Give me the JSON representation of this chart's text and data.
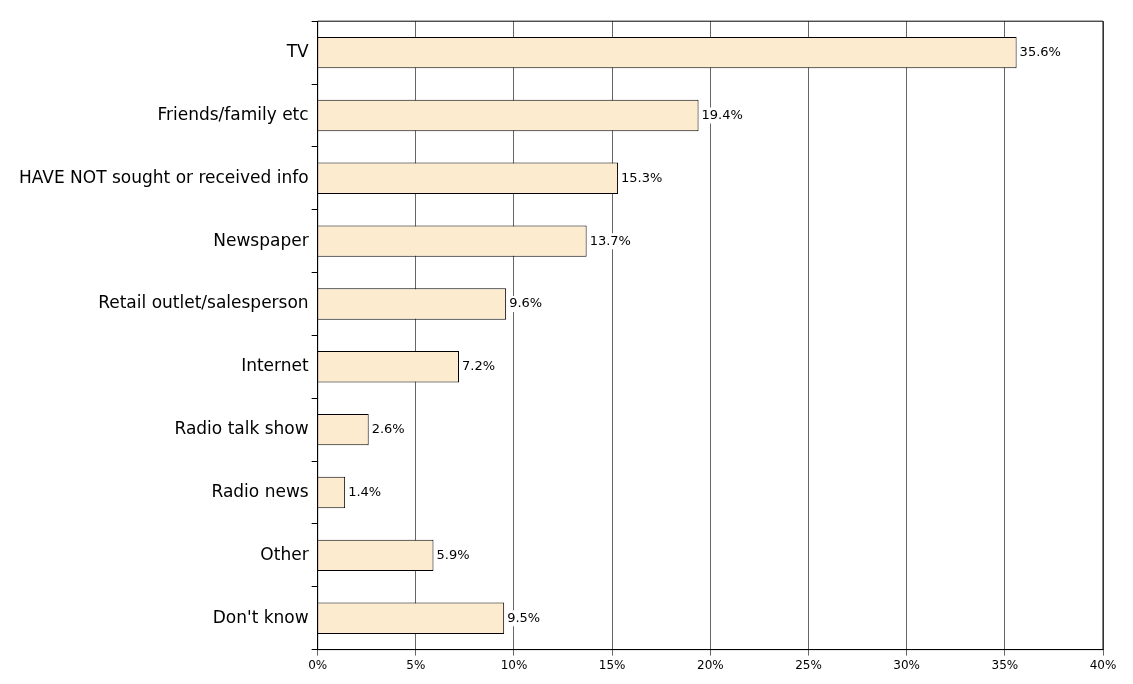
{
  "chart_data": {
    "type": "bar",
    "orientation": "horizontal",
    "categories": [
      "TV",
      "Friends/family etc",
      "HAVE NOT sought or received info",
      "Newspaper",
      "Retail outlet/salesperson",
      "Internet",
      "Radio talk show",
      "Radio news",
      "Other",
      "Don't know"
    ],
    "values": [
      35.6,
      19.4,
      15.3,
      13.7,
      9.6,
      7.2,
      2.6,
      1.4,
      5.9,
      9.5
    ],
    "value_labels": [
      "35.6%",
      "19.4%",
      "15.3%",
      "13.7%",
      "9.6%",
      "7.2%",
      "2.6%",
      "1.4%",
      "5.9%",
      "9.5%"
    ],
    "color": "#fdebd0",
    "xlim": [
      0,
      40
    ],
    "xticks": [
      {
        "value": 0,
        "label": "0%"
      },
      {
        "value": 5,
        "label": "5%"
      },
      {
        "value": 10,
        "label": "10%"
      },
      {
        "value": 15,
        "label": "15%"
      },
      {
        "value": 20,
        "label": "20%"
      },
      {
        "value": 25,
        "label": "25%"
      },
      {
        "value": 30,
        "label": "30%"
      },
      {
        "value": 35,
        "label": "35%"
      },
      {
        "value": 40,
        "label": "40%"
      }
    ],
    "grid": "x",
    "legend": false
  }
}
